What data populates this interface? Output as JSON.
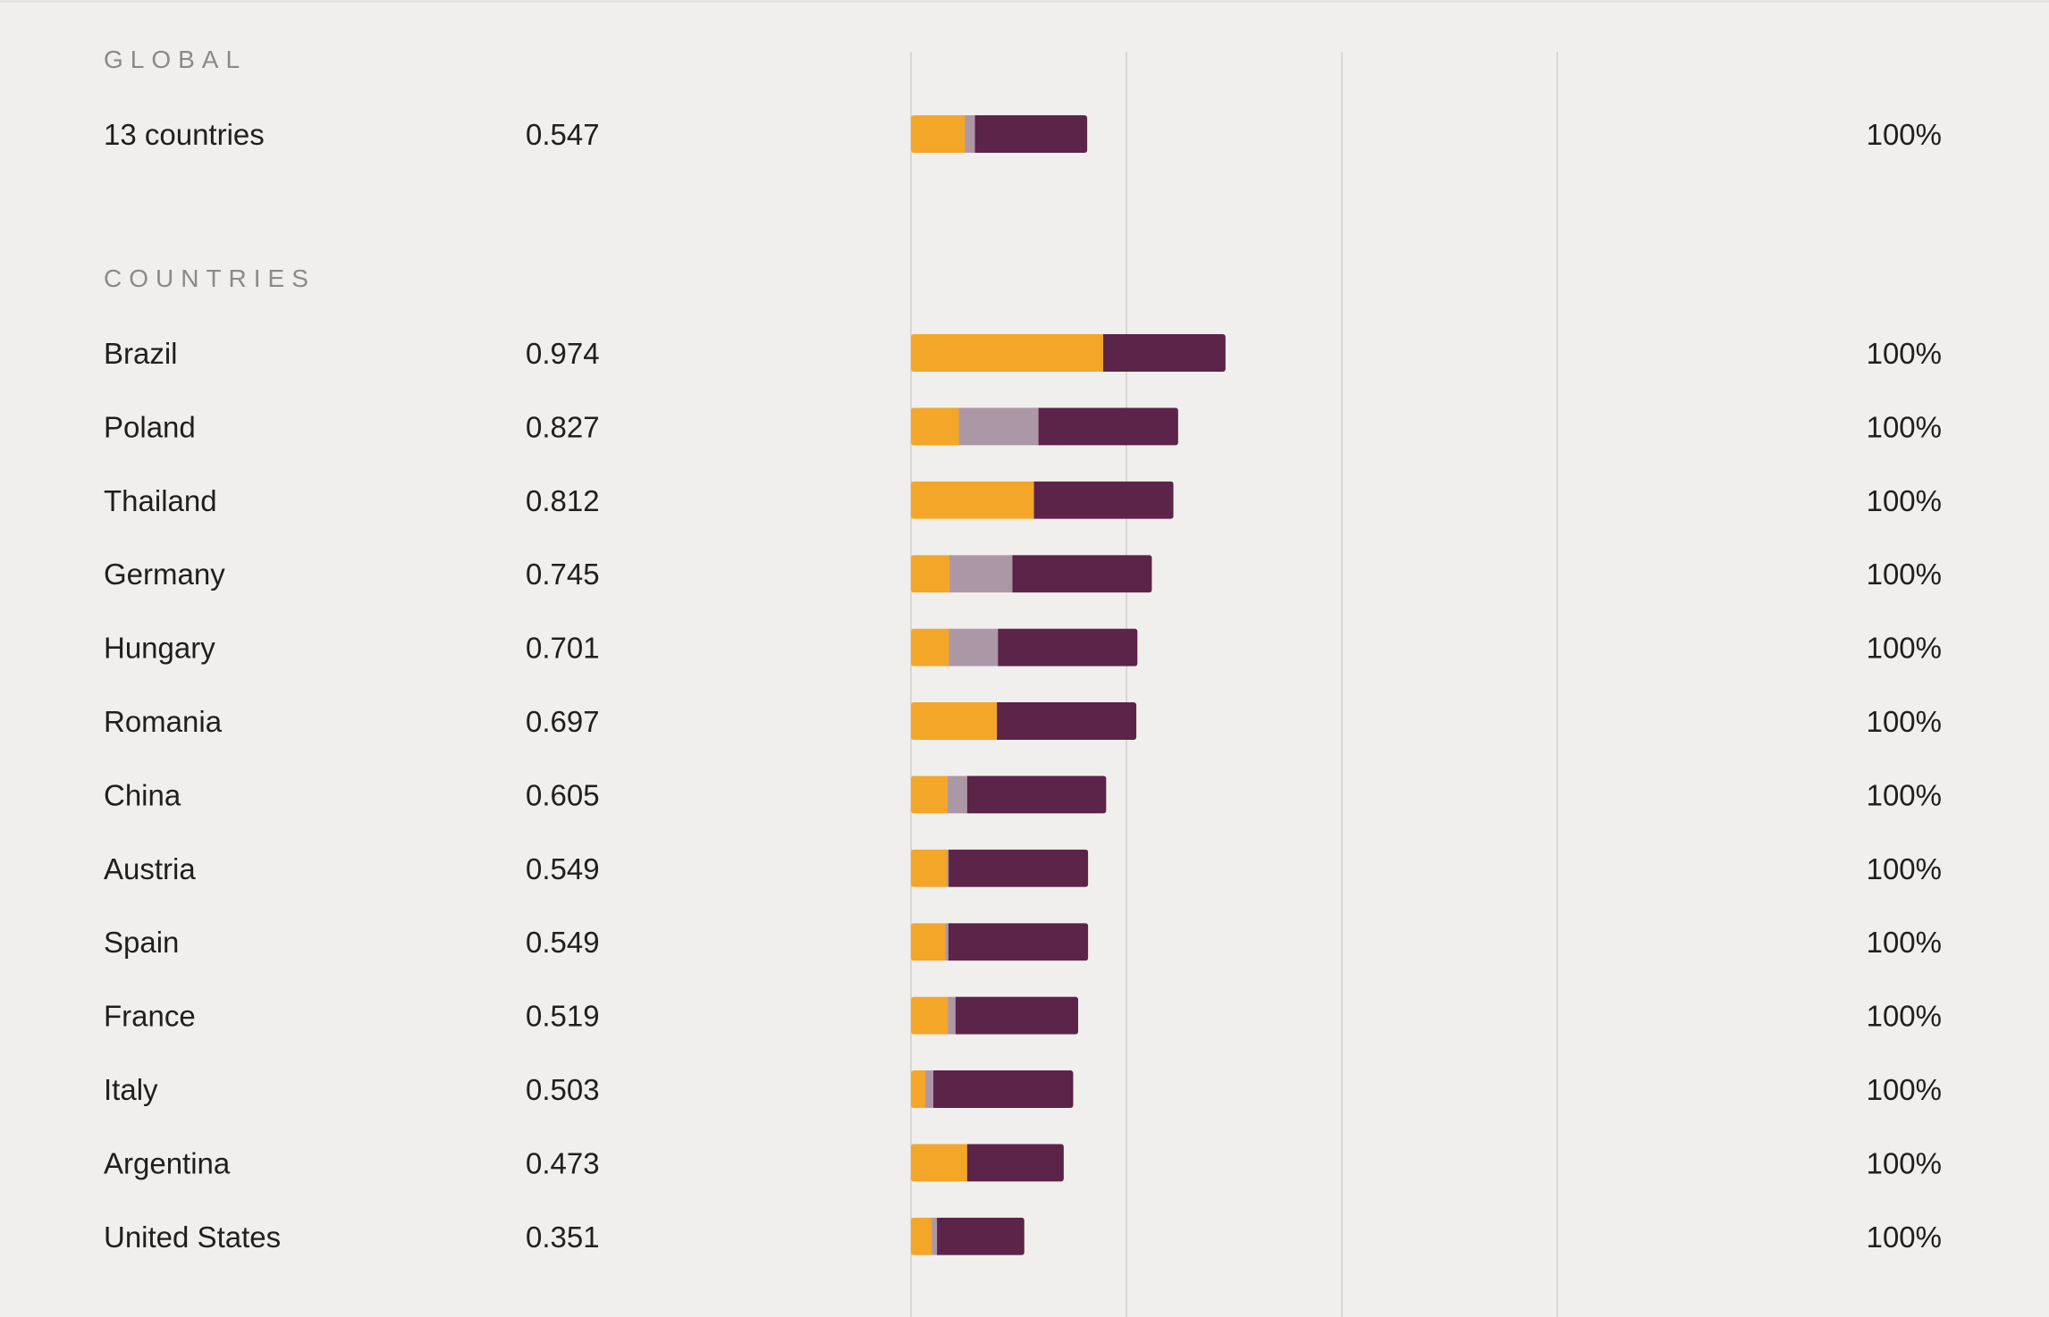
{
  "chart_data": {
    "type": "bar",
    "stacked": true,
    "orientation": "horizontal",
    "colors": {
      "segment_1": "#f4a628",
      "segment_2": "#ac97a6",
      "segment_3": "#5b2448",
      "gridline": "#d9d6d3",
      "background": "#f1efed"
    },
    "grid": true,
    "sections": [
      {
        "title": "GLOBAL",
        "rows": [
          {
            "label": "13 countries",
            "value": "0.547",
            "pct": "100%",
            "segments": [
              0.251,
              0.046,
              0.521
            ]
          }
        ]
      },
      {
        "title": "COUNTRIES",
        "rows": [
          {
            "label": "Brazil",
            "value": "0.974",
            "pct": "100%",
            "segments": [
              0.892,
              0.0,
              0.568
            ]
          },
          {
            "label": "Poland",
            "value": "0.827",
            "pct": "100%",
            "segments": [
              0.223,
              0.369,
              0.648
            ]
          },
          {
            "label": "Thailand",
            "value": "0.812",
            "pct": "100%",
            "segments": [
              0.571,
              0.0,
              0.647
            ]
          },
          {
            "label": "Germany",
            "value": "0.745",
            "pct": "100%",
            "segments": [
              0.179,
              0.292,
              0.647
            ]
          },
          {
            "label": "Hungary",
            "value": "0.701",
            "pct": "100%",
            "segments": [
              0.177,
              0.227,
              0.647
            ]
          },
          {
            "label": "Romania",
            "value": "0.697",
            "pct": "100%",
            "segments": [
              0.399,
              0.0,
              0.647
            ]
          },
          {
            "label": "China",
            "value": "0.605",
            "pct": "100%",
            "segments": [
              0.17,
              0.091,
              0.645
            ]
          },
          {
            "label": "Austria",
            "value": "0.549",
            "pct": "100%",
            "segments": [
              0.168,
              0.007,
              0.647
            ]
          },
          {
            "label": "Spain",
            "value": "0.549",
            "pct": "100%",
            "segments": [
              0.16,
              0.014,
              0.648
            ]
          },
          {
            "label": "France",
            "value": "0.519",
            "pct": "100%",
            "segments": [
              0.172,
              0.035,
              0.569
            ]
          },
          {
            "label": "Italy",
            "value": "0.503",
            "pct": "100%",
            "segments": [
              0.067,
              0.037,
              0.649
            ]
          },
          {
            "label": "Argentina",
            "value": "0.473",
            "pct": "100%",
            "segments": [
              0.261,
              0.0,
              0.448
            ]
          },
          {
            "label": "United States",
            "value": "0.351",
            "pct": "100%",
            "segments": [
              0.097,
              0.024,
              0.405
            ]
          }
        ]
      }
    ]
  }
}
